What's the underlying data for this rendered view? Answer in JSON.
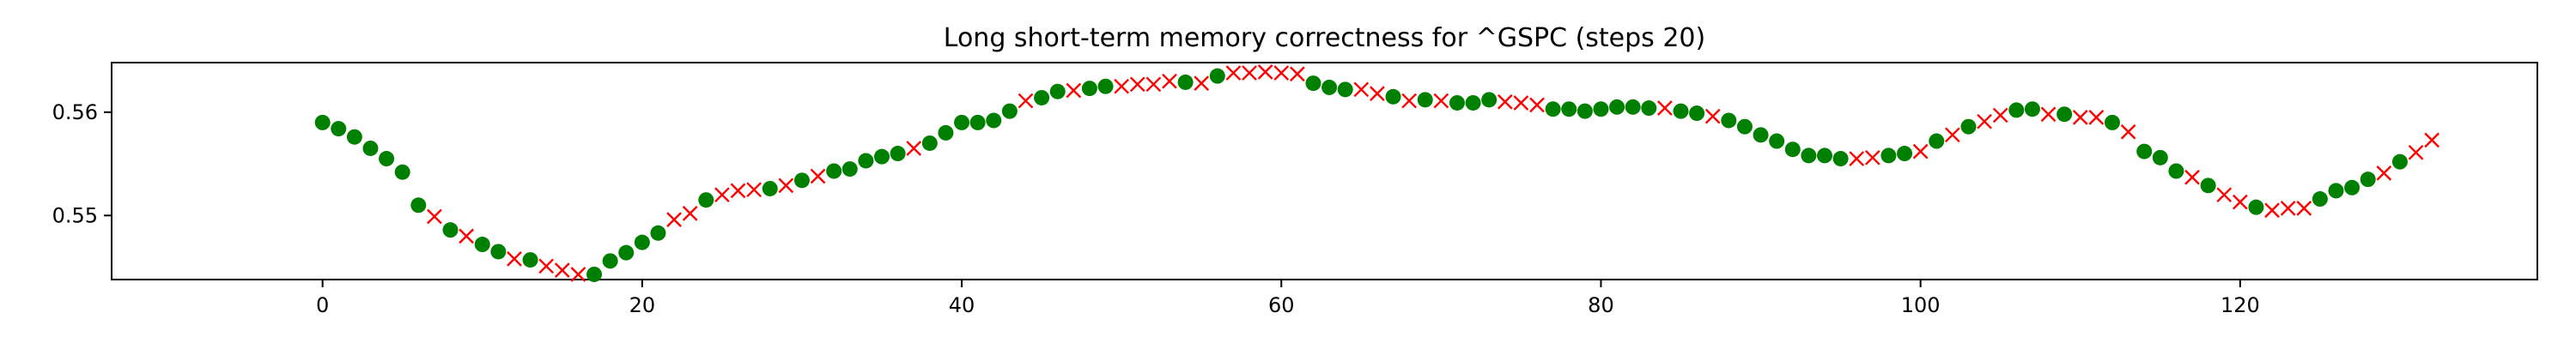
{
  "chart_data": {
    "type": "scatter",
    "title": "Long short-term memory correctness for ^GSPC (steps 20)",
    "xlabel": "",
    "ylabel": "",
    "xlim": [
      -13.2,
      138.6
    ],
    "ylim": [
      0.5438,
      0.5648
    ],
    "grid": false,
    "x_ticks": [
      0,
      20,
      40,
      60,
      80,
      100,
      120
    ],
    "y_ticks": [
      0.55,
      0.56
    ],
    "y_tick_labels": [
      "0.55",
      "0.56"
    ],
    "colors": {
      "correct": "#008000",
      "incorrect": "#ff0000"
    },
    "series": [
      {
        "marker": "circle",
        "color": "#008000",
        "points": [
          [
            0,
            0.559
          ],
          [
            1,
            0.5584
          ],
          [
            2,
            0.5576
          ],
          [
            3,
            0.5565
          ],
          [
            4,
            0.5555
          ],
          [
            5,
            0.5542
          ],
          [
            6,
            0.551
          ],
          [
            8,
            0.5486
          ],
          [
            10,
            0.5472
          ],
          [
            11,
            0.5465
          ],
          [
            13,
            0.5457
          ],
          [
            17,
            0.5443
          ],
          [
            18,
            0.5456
          ],
          [
            19,
            0.5464
          ],
          [
            20,
            0.5474
          ],
          [
            21,
            0.5483
          ],
          [
            24,
            0.5515
          ],
          [
            28,
            0.5526
          ],
          [
            30,
            0.5534
          ],
          [
            32,
            0.5543
          ],
          [
            33,
            0.5545
          ],
          [
            34,
            0.5553
          ],
          [
            35,
            0.5557
          ],
          [
            36,
            0.556
          ],
          [
            38,
            0.557
          ],
          [
            39,
            0.558
          ],
          [
            40,
            0.559
          ],
          [
            41,
            0.559
          ],
          [
            42,
            0.5592
          ],
          [
            43,
            0.5601
          ],
          [
            45,
            0.5614
          ],
          [
            46,
            0.562
          ],
          [
            48,
            0.5623
          ],
          [
            49,
            0.5625
          ],
          [
            54,
            0.5629
          ],
          [
            56,
            0.5635
          ],
          [
            62,
            0.5628
          ],
          [
            63,
            0.5624
          ],
          [
            64,
            0.5622
          ],
          [
            67,
            0.5615
          ],
          [
            69,
            0.5612
          ],
          [
            71,
            0.5609
          ],
          [
            72,
            0.5609
          ],
          [
            73,
            0.5612
          ],
          [
            77,
            0.5603
          ],
          [
            78,
            0.5603
          ],
          [
            79,
            0.5601
          ],
          [
            80,
            0.5603
          ],
          [
            81,
            0.5605
          ],
          [
            82,
            0.5605
          ],
          [
            83,
            0.5604
          ],
          [
            85,
            0.5601
          ],
          [
            86,
            0.5599
          ],
          [
            88,
            0.5592
          ],
          [
            89,
            0.5586
          ],
          [
            90,
            0.5578
          ],
          [
            91,
            0.5572
          ],
          [
            92,
            0.5564
          ],
          [
            93,
            0.5558
          ],
          [
            94,
            0.5558
          ],
          [
            95,
            0.5555
          ],
          [
            98,
            0.5558
          ],
          [
            99,
            0.556
          ],
          [
            101,
            0.5572
          ],
          [
            103,
            0.5586
          ],
          [
            106,
            0.5602
          ],
          [
            107,
            0.5603
          ],
          [
            109,
            0.5598
          ],
          [
            112,
            0.559
          ],
          [
            114,
            0.5562
          ],
          [
            115,
            0.5556
          ],
          [
            116,
            0.5543
          ],
          [
            118,
            0.5529
          ],
          [
            121,
            0.5508
          ],
          [
            125,
            0.5516
          ],
          [
            126,
            0.5524
          ],
          [
            127,
            0.5527
          ],
          [
            128,
            0.5535
          ],
          [
            130,
            0.5552
          ]
        ]
      },
      {
        "marker": "x",
        "color": "#ff0000",
        "points": [
          [
            7,
            0.5499
          ],
          [
            9,
            0.548
          ],
          [
            12,
            0.5458
          ],
          [
            14,
            0.5451
          ],
          [
            15,
            0.5447
          ],
          [
            16,
            0.5443
          ],
          [
            22,
            0.5496
          ],
          [
            23,
            0.5502
          ],
          [
            25,
            0.552
          ],
          [
            26,
            0.5524
          ],
          [
            27,
            0.5525
          ],
          [
            29,
            0.5529
          ],
          [
            31,
            0.5538
          ],
          [
            37,
            0.5565
          ],
          [
            44,
            0.5611
          ],
          [
            47,
            0.5621
          ],
          [
            50,
            0.5625
          ],
          [
            51,
            0.5627
          ],
          [
            52,
            0.5627
          ],
          [
            53,
            0.563
          ],
          [
            55,
            0.5628
          ],
          [
            57,
            0.5638
          ],
          [
            58,
            0.5638
          ],
          [
            59,
            0.5639
          ],
          [
            60,
            0.5638
          ],
          [
            61,
            0.5637
          ],
          [
            65,
            0.5622
          ],
          [
            66,
            0.5618
          ],
          [
            68,
            0.5611
          ],
          [
            70,
            0.5611
          ],
          [
            74,
            0.561
          ],
          [
            75,
            0.5609
          ],
          [
            76,
            0.5607
          ],
          [
            84,
            0.5604
          ],
          [
            87,
            0.5596
          ],
          [
            96,
            0.5555
          ],
          [
            97,
            0.5556
          ],
          [
            100,
            0.5562
          ],
          [
            102,
            0.5578
          ],
          [
            104,
            0.5591
          ],
          [
            105,
            0.5597
          ],
          [
            108,
            0.5598
          ],
          [
            110,
            0.5595
          ],
          [
            111,
            0.5595
          ],
          [
            113,
            0.5581
          ],
          [
            117,
            0.5537
          ],
          [
            119,
            0.552
          ],
          [
            120,
            0.5513
          ],
          [
            122,
            0.5505
          ],
          [
            123,
            0.5507
          ],
          [
            124,
            0.5507
          ],
          [
            129,
            0.5541
          ],
          [
            131,
            0.5561
          ],
          [
            132,
            0.5573
          ]
        ]
      }
    ]
  }
}
